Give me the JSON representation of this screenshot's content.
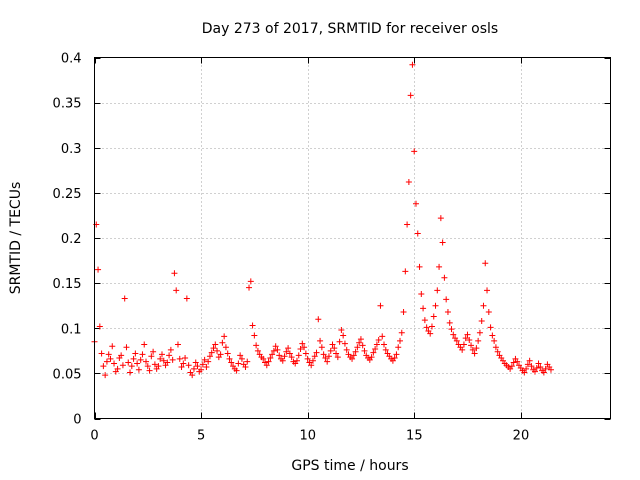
{
  "chart_data": {
    "type": "scatter",
    "title": "Day 273 of 2017, SRMTID for receiver osls",
    "xlabel": "GPS time / hours",
    "ylabel": "SRMTID / TECUs",
    "xlim": [
      0,
      24.2
    ],
    "ylim": [
      0,
      0.4
    ],
    "xticks": [
      0,
      5,
      10,
      15,
      20
    ],
    "yticks": [
      0,
      0.05,
      0.1,
      0.15,
      0.2,
      0.25,
      0.3,
      0.35,
      0.4
    ],
    "xtick_labels": [
      "0",
      "5",
      "10",
      "15",
      "20"
    ],
    "ytick_labels": [
      "0",
      "0.05",
      "0.1",
      "0.15",
      "0.2",
      "0.25",
      "0.3",
      "0.35",
      "0.4"
    ],
    "grid": true,
    "marker": "+",
    "series": [
      {
        "name": "osls",
        "color": "#ff0000",
        "x_start": 0,
        "x_step": 0.0833,
        "values": [
          0.085,
          0.215,
          0.165,
          0.102,
          0.072,
          0.058,
          0.048,
          0.063,
          0.071,
          0.066,
          0.08,
          0.061,
          0.052,
          0.055,
          0.067,
          0.07,
          0.059,
          0.133,
          0.079,
          0.062,
          0.051,
          0.058,
          0.066,
          0.072,
          0.061,
          0.054,
          0.065,
          0.071,
          0.082,
          0.063,
          0.058,
          0.053,
          0.069,
          0.074,
          0.06,
          0.055,
          0.058,
          0.066,
          0.071,
          0.064,
          0.059,
          0.062,
          0.07,
          0.076,
          0.065,
          0.161,
          0.142,
          0.082,
          0.066,
          0.057,
          0.061,
          0.067,
          0.133,
          0.059,
          0.051,
          0.048,
          0.055,
          0.062,
          0.058,
          0.052,
          0.054,
          0.06,
          0.065,
          0.057,
          0.063,
          0.069,
          0.073,
          0.078,
          0.082,
          0.075,
          0.068,
          0.071,
          0.084,
          0.091,
          0.079,
          0.072,
          0.066,
          0.062,
          0.058,
          0.055,
          0.053,
          0.061,
          0.07,
          0.066,
          0.06,
          0.057,
          0.063,
          0.145,
          0.152,
          0.103,
          0.092,
          0.081,
          0.075,
          0.071,
          0.068,
          0.066,
          0.062,
          0.059,
          0.063,
          0.067,
          0.071,
          0.075,
          0.08,
          0.076,
          0.07,
          0.066,
          0.064,
          0.069,
          0.074,
          0.078,
          0.072,
          0.068,
          0.063,
          0.061,
          0.064,
          0.07,
          0.077,
          0.083,
          0.079,
          0.072,
          0.066,
          0.062,
          0.059,
          0.064,
          0.069,
          0.073,
          0.11,
          0.086,
          0.079,
          0.071,
          0.067,
          0.063,
          0.069,
          0.075,
          0.082,
          0.078,
          0.072,
          0.068,
          0.085,
          0.098,
          0.092,
          0.083,
          0.076,
          0.071,
          0.068,
          0.066,
          0.07,
          0.074,
          0.079,
          0.084,
          0.088,
          0.081,
          0.075,
          0.07,
          0.067,
          0.065,
          0.068,
          0.073,
          0.077,
          0.082,
          0.087,
          0.125,
          0.091,
          0.082,
          0.076,
          0.072,
          0.069,
          0.066,
          0.064,
          0.067,
          0.071,
          0.079,
          0.086,
          0.095,
          0.118,
          0.163,
          0.215,
          0.262,
          0.358,
          0.392,
          0.296,
          0.238,
          0.205,
          0.168,
          0.138,
          0.122,
          0.109,
          0.101,
          0.097,
          0.094,
          0.102,
          0.113,
          0.125,
          0.142,
          0.168,
          0.222,
          0.195,
          0.156,
          0.132,
          0.118,
          0.106,
          0.099,
          0.093,
          0.089,
          0.086,
          0.082,
          0.079,
          0.076,
          0.082,
          0.089,
          0.093,
          0.087,
          0.081,
          0.076,
          0.072,
          0.078,
          0.086,
          0.095,
          0.108,
          0.125,
          0.172,
          0.142,
          0.118,
          0.101,
          0.092,
          0.086,
          0.079,
          0.074,
          0.07,
          0.067,
          0.064,
          0.061,
          0.059,
          0.057,
          0.055,
          0.058,
          0.062,
          0.066,
          0.063,
          0.059,
          0.056,
          0.053,
          0.051,
          0.055,
          0.06,
          0.064,
          0.058,
          0.054,
          0.052,
          0.056,
          0.061,
          0.057,
          0.053,
          0.051,
          0.055,
          0.06,
          0.057,
          0.054
        ]
      }
    ]
  }
}
